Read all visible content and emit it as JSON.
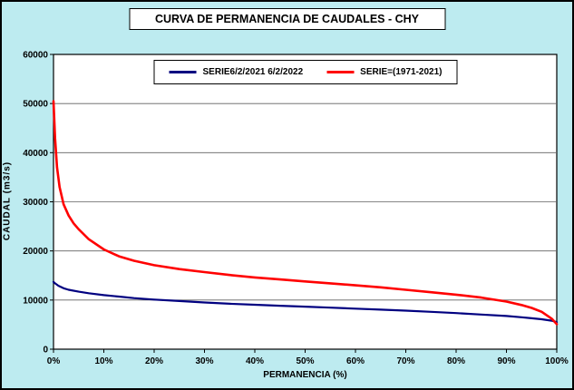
{
  "window": {
    "title": "CURVA DE PERMANENCIA DE CAUDALES - CHY"
  },
  "colors": {
    "background": "#bdebf0",
    "plot_background": "#ffffff",
    "grid": "#606060",
    "axis": "#000000",
    "series1": "#000080",
    "series2": "#ff0000"
  },
  "chart_data": {
    "type": "line",
    "title": "CURVA DE PERMANENCIA DE CAUDALES - CHY",
    "xlabel": "PERMANENCIA (%)",
    "ylabel": "CAUDAL (m3/s)",
    "xlim": [
      0,
      100
    ],
    "ylim": [
      0,
      60000
    ],
    "x_ticks": [
      "0%",
      "10%",
      "20%",
      "30%",
      "40%",
      "50%",
      "60%",
      "70%",
      "80%",
      "90%",
      "100%"
    ],
    "x_tick_values": [
      0,
      10,
      20,
      30,
      40,
      50,
      60,
      70,
      80,
      90,
      100
    ],
    "y_ticks": [
      0,
      10000,
      20000,
      30000,
      40000,
      50000,
      60000
    ],
    "grid": "horizontal",
    "legend_position": "top-center",
    "series": [
      {
        "name": "SERIE6/2/2021 6/2/2022",
        "color": "#000080",
        "x": [
          0,
          0.3,
          1,
          2,
          3,
          5,
          7,
          10,
          13,
          16,
          20,
          25,
          30,
          35,
          40,
          45,
          50,
          55,
          60,
          65,
          70,
          75,
          80,
          85,
          90,
          93,
          95,
          97,
          99,
          100
        ],
        "y": [
          13700,
          13400,
          12900,
          12400,
          12100,
          11700,
          11400,
          11000,
          10700,
          10400,
          10100,
          9800,
          9500,
          9250,
          9050,
          8850,
          8650,
          8450,
          8250,
          8050,
          7850,
          7600,
          7350,
          7050,
          6750,
          6500,
          6300,
          6100,
          5800,
          5500
        ]
      },
      {
        "name": "SERIE=(1971-2021)",
        "color": "#ff0000",
        "x": [
          0,
          0.3,
          0.7,
          1.2,
          2,
          3,
          4,
          5,
          7,
          10,
          13,
          16,
          20,
          25,
          30,
          35,
          40,
          45,
          50,
          55,
          60,
          65,
          70,
          75,
          80,
          85,
          90,
          93,
          95,
          97,
          99,
          100
        ],
        "y": [
          50500,
          43000,
          37000,
          33000,
          29500,
          27200,
          25600,
          24400,
          22400,
          20300,
          18900,
          18000,
          17100,
          16300,
          15700,
          15100,
          14600,
          14200,
          13800,
          13400,
          13000,
          12600,
          12100,
          11600,
          11100,
          10500,
          9700,
          9000,
          8400,
          7600,
          6200,
          5100
        ]
      }
    ]
  }
}
